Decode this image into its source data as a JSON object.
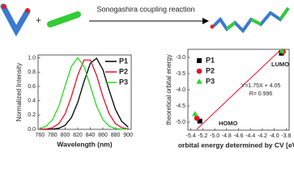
{
  "scheme": {
    "arrow_label": "Sonogashira coupling reaction",
    "plus": "+"
  },
  "chart_data": [
    {
      "type": "line",
      "ylabel": "Normalized Intensity",
      "xlabel": "Wavelength (nm)",
      "x": [
        760,
        770,
        780,
        790,
        800,
        810,
        820,
        830,
        840,
        850,
        860,
        870,
        880,
        890,
        900
      ],
      "series": [
        {
          "name": "P1",
          "color": "#000000",
          "values": [
            0,
            0,
            0.003,
            0.015,
            0.056,
            0.164,
            0.375,
            0.667,
            0.923,
            0.995,
            0.835,
            0.546,
            0.278,
            0.11,
            0.034
          ]
        },
        {
          "name": "P2",
          "color": "#e8102a",
          "values": [
            0.001,
            0.005,
            0.023,
            0.08,
            0.216,
            0.458,
            0.755,
            0.969,
            0.969,
            0.755,
            0.458,
            0.216,
            0.08,
            0.023,
            0.005
          ]
        },
        {
          "name": "P3",
          "color": "#22dd22",
          "values": [
            0.011,
            0.044,
            0.135,
            0.325,
            0.607,
            0.882,
            1.0,
            0.882,
            0.607,
            0.325,
            0.135,
            0.044,
            0.011,
            0.002,
            0
          ]
        }
      ],
      "xlim": [
        757,
        905
      ],
      "xticks": [
        760,
        780,
        800,
        820,
        840,
        860,
        880,
        900
      ],
      "ylim": [
        0,
        1.04
      ],
      "yticks": [
        {
          "value": 0,
          "label": "0.0"
        },
        0.2,
        0.4,
        0.6,
        0.8,
        {
          "value": 1,
          "label": "1.0"
        }
      ]
    },
    {
      "type": "scatter",
      "ylabel": "theoretical orbital energy",
      "xlabel": "orbital energy determined by CV [eV]",
      "series": [
        {
          "name": "P1",
          "color": "#000000",
          "marker": "square",
          "x": [
            -5.25,
            -3.88
          ],
          "values": [
            -4.97,
            -2.87
          ]
        },
        {
          "name": "P2",
          "color": "#e8102a",
          "marker": "circle",
          "x": [
            -5.3,
            -3.85
          ],
          "values": [
            -4.88,
            -2.83
          ]
        },
        {
          "name": "P3",
          "color": "#22dd22",
          "marker": "triangle",
          "x": [
            -5.33,
            -3.87
          ],
          "values": [
            -4.75,
            -2.8
          ]
        }
      ],
      "fit": {
        "color": "#e8102a",
        "x": [
          -5.3,
          -3.9
        ],
        "values": [
          -5.225,
          -2.775
        ]
      },
      "annotations": [
        "HOMO",
        "LUMO",
        "Y=1.75X + 4.05",
        "R= 0.996"
      ],
      "xlim": [
        -5.45,
        -3.75
      ],
      "xticks": [
        -5.4,
        -5.2,
        {
          "value": -5,
          "label": "-5.0"
        },
        -4.8,
        -4.6,
        -4.4,
        -4.2,
        {
          "value": -4,
          "label": "-4.0"
        },
        -3.8
      ],
      "ylim": [
        -5.25,
        -2.75
      ],
      "yticks": [
        {
          "value": -5,
          "label": "-5.0"
        },
        -4.5,
        {
          "value": -4,
          "label": "-4.0"
        },
        -3.5,
        {
          "value": -3,
          "label": "-3.0"
        }
      ]
    }
  ]
}
